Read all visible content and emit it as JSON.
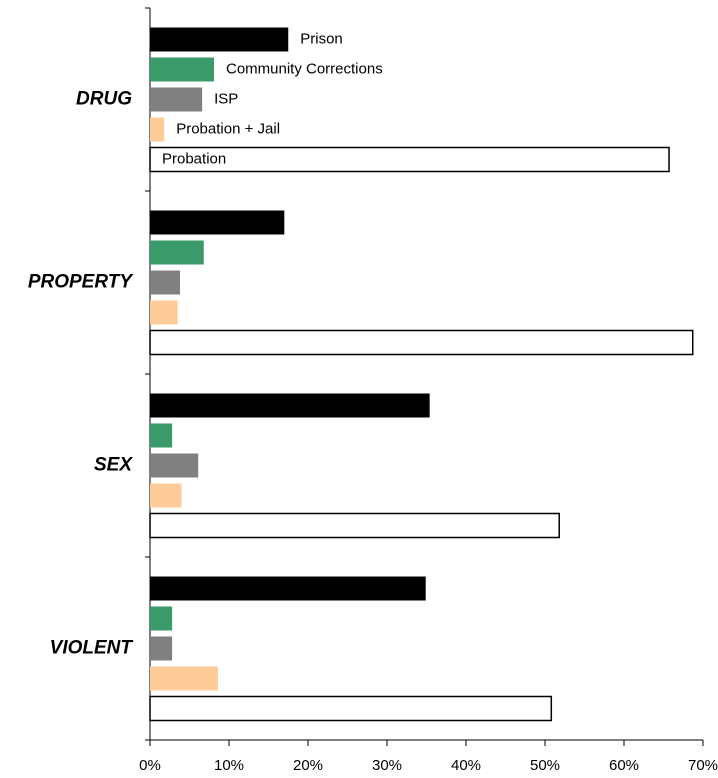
{
  "chart_data": {
    "type": "hbar",
    "categories": [
      "DRUG",
      "PROPERTY",
      "SEX",
      "VIOLENT"
    ],
    "series": [
      {
        "name": "Prison",
        "color": "#000000",
        "values": [
          17.5,
          17.0,
          35.4,
          34.9
        ]
      },
      {
        "name": "Community Corrections",
        "color": "#3a9a6a",
        "values": [
          8.1,
          6.8,
          2.8,
          2.8
        ]
      },
      {
        "name": "ISP",
        "color": "#808080",
        "values": [
          6.6,
          3.8,
          6.1,
          2.8
        ]
      },
      {
        "name": "Probation + Jail",
        "color": "#ffcc99",
        "values": [
          1.8,
          3.5,
          4.0,
          8.6
        ]
      },
      {
        "name": "Probation",
        "color": "#ffffff",
        "values": [
          65.7,
          68.7,
          51.8,
          50.8
        ]
      }
    ],
    "xlim": [
      0,
      70
    ],
    "xticks": [
      {
        "value": 0,
        "label": "0%"
      },
      {
        "value": 10,
        "label": "10%"
      },
      {
        "value": 20,
        "label": "20%"
      },
      {
        "value": 30,
        "label": "30%"
      },
      {
        "value": 40,
        "label": "40%"
      },
      {
        "value": 50,
        "label": "50%"
      },
      {
        "value": 60,
        "label": "60%"
      },
      {
        "value": 70,
        "label": "70%"
      }
    ]
  }
}
